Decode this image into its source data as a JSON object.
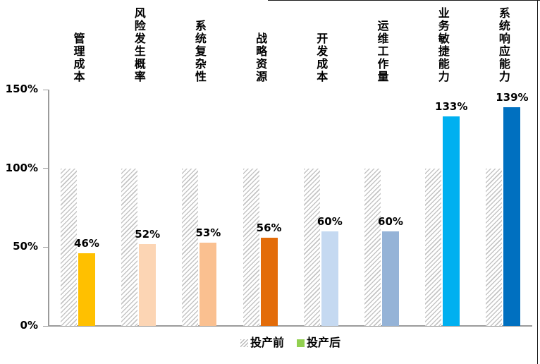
{
  "chart_data": {
    "type": "bar",
    "title": "",
    "categories": [
      "管理成本",
      "风险发生概率",
      "系统复杂性",
      "战略资源",
      "开发成本",
      "运维工作量",
      "业务敏捷能力",
      "系统响应能力"
    ],
    "series": [
      {
        "name": "投产前",
        "values": [
          100,
          100,
          100,
          100,
          100,
          100,
          100,
          100
        ],
        "style": "hatched-gray"
      },
      {
        "name": "投产后",
        "values": [
          46,
          52,
          53,
          56,
          60,
          60,
          133,
          139
        ],
        "point_colors": [
          "#FFC000",
          "#FCD5B4",
          "#FAC090",
          "#E36C09",
          "#C5D9F1",
          "#95B3D7",
          "#00B0F0",
          "#0070C0"
        ]
      }
    ],
    "data_labels": [
      "46%",
      "52%",
      "53%",
      "56%",
      "60%",
      "60%",
      "133%",
      "139%"
    ],
    "y_axis": {
      "min": 0,
      "max": 150,
      "tick_labels": [
        "0%",
        "50%",
        "100%",
        "150%"
      ],
      "tick_values": [
        0,
        50,
        100,
        150
      ]
    },
    "grid": false,
    "legend_position": "bottom",
    "legend": [
      {
        "label": "投产前",
        "marker": "hatched-gray"
      },
      {
        "label": "投产后",
        "marker": "solid",
        "marker_color": "#92D050"
      }
    ]
  },
  "colors": {
    "axis": "#9b9b9b",
    "hatch_line": "#c4c4c4",
    "legend_green": "#92D050",
    "text": "#000000",
    "background": "#ffffff"
  }
}
